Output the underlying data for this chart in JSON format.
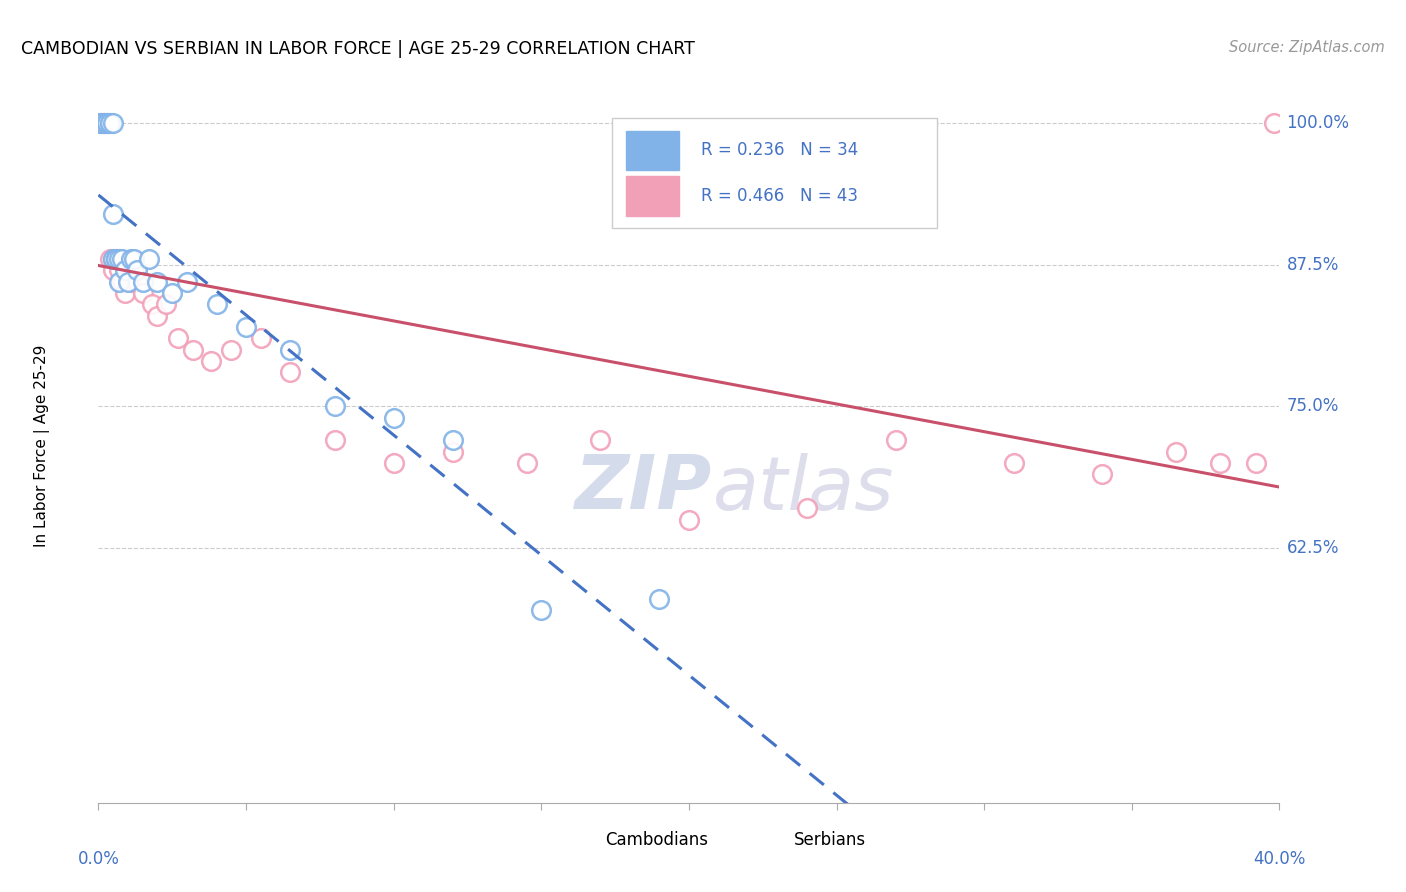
{
  "title": "CAMBODIAN VS SERBIAN IN LABOR FORCE | AGE 25-29 CORRELATION CHART",
  "source": "Source: ZipAtlas.com",
  "ylabel": "In Labor Force | Age 25-29",
  "R_cambodian": 0.236,
  "N_cambodian": 34,
  "R_serbian": 0.466,
  "N_serbian": 43,
  "cambodian_color": "#82B3E8",
  "serbian_color": "#F2A0B8",
  "cambodian_line_color": "#4472C4",
  "serbian_line_color": "#C8506A",
  "text_blue": "#4472C4",
  "grid_color": "#CCCCCC",
  "xmin": 0.0,
  "xmax": 0.4,
  "ymin": 0.4,
  "ymax": 1.03,
  "yticks": [
    1.0,
    0.875,
    0.75,
    0.625
  ],
  "ytick_labels": [
    "100.0%",
    "87.5%",
    "75.0%",
    "62.5%"
  ],
  "xtick_left_label": "0.0%",
  "xtick_right_label": "40.0%",
  "cambodian_x": [
    0.001,
    0.001,
    0.002,
    0.002,
    0.003,
    0.003,
    0.004,
    0.004,
    0.005,
    0.005,
    0.005,
    0.006,
    0.006,
    0.007,
    0.007,
    0.008,
    0.009,
    0.01,
    0.011,
    0.012,
    0.013,
    0.015,
    0.017,
    0.02,
    0.025,
    0.03,
    0.04,
    0.05,
    0.065,
    0.08,
    0.1,
    0.12,
    0.15,
    0.19
  ],
  "cambodian_y": [
    1.0,
    1.0,
    1.0,
    1.0,
    1.0,
    1.0,
    1.0,
    1.0,
    1.0,
    0.92,
    0.88,
    0.88,
    0.88,
    0.88,
    0.86,
    0.88,
    0.87,
    0.86,
    0.88,
    0.88,
    0.87,
    0.86,
    0.88,
    0.86,
    0.85,
    0.86,
    0.84,
    0.82,
    0.8,
    0.75,
    0.74,
    0.72,
    0.57,
    0.58
  ],
  "serbian_x": [
    0.001,
    0.001,
    0.002,
    0.002,
    0.003,
    0.003,
    0.004,
    0.004,
    0.005,
    0.005,
    0.006,
    0.007,
    0.007,
    0.008,
    0.009,
    0.01,
    0.011,
    0.012,
    0.013,
    0.015,
    0.018,
    0.02,
    0.023,
    0.027,
    0.032,
    0.038,
    0.045,
    0.055,
    0.065,
    0.08,
    0.1,
    0.12,
    0.145,
    0.17,
    0.2,
    0.24,
    0.27,
    0.31,
    0.34,
    0.365,
    0.38,
    0.392,
    0.398
  ],
  "serbian_y": [
    1.0,
    1.0,
    1.0,
    1.0,
    1.0,
    1.0,
    1.0,
    0.88,
    0.88,
    0.87,
    0.88,
    0.87,
    0.88,
    0.86,
    0.85,
    0.87,
    0.86,
    0.87,
    0.86,
    0.85,
    0.84,
    0.83,
    0.84,
    0.81,
    0.8,
    0.79,
    0.8,
    0.81,
    0.78,
    0.72,
    0.7,
    0.71,
    0.7,
    0.72,
    0.65,
    0.66,
    0.72,
    0.7,
    0.69,
    0.71,
    0.7,
    0.7,
    1.0
  ]
}
